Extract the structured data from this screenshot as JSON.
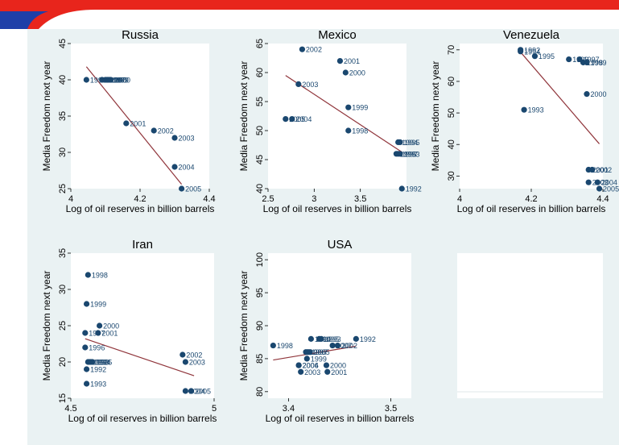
{
  "colors": {
    "marker": "#1a476f",
    "fit_line": "#90353b",
    "plot_bg": "#ffffff",
    "graph_bg": "#eaf2f3",
    "banner_red": "#e8251c",
    "banner_blue": "#1f3fa8",
    "label": "#1a476f"
  },
  "chart_data": [
    {
      "type": "scatter",
      "title": "Russia",
      "xlabel": "Log of oil reserves in billion barrels",
      "ylabel": "Media Freedom next year",
      "xlim": [
        4,
        4.4
      ],
      "ylim": [
        25,
        45
      ],
      "xticks": [
        4,
        4.2,
        4.4
      ],
      "xtick_labels": [
        "4",
        "4.2",
        "4.4"
      ],
      "yticks": [
        25,
        30,
        35,
        40,
        45
      ],
      "ytick_labels": [
        "25",
        "30",
        "35",
        "40",
        "45"
      ],
      "points": [
        {
          "x": 4.045,
          "y": 40,
          "label": "1995"
        },
        {
          "x": 4.09,
          "y": 40,
          "label": "1996"
        },
        {
          "x": 4.1,
          "y": 40,
          "label": "1997"
        },
        {
          "x": 4.105,
          "y": 40,
          "label": "1998"
        },
        {
          "x": 4.11,
          "y": 40,
          "label": "1999"
        },
        {
          "x": 4.115,
          "y": 40,
          "label": "2000"
        },
        {
          "x": 4.16,
          "y": 34,
          "label": "2001"
        },
        {
          "x": 4.24,
          "y": 33,
          "label": "2002"
        },
        {
          "x": 4.3,
          "y": 32,
          "label": "2003"
        },
        {
          "x": 4.3,
          "y": 28,
          "label": "2004"
        },
        {
          "x": 4.32,
          "y": 25,
          "label": "2005"
        }
      ],
      "fit": [
        [
          4.045,
          41.8
        ],
        [
          4.32,
          25.6
        ]
      ]
    },
    {
      "type": "scatter",
      "title": "Mexico",
      "xlabel": "Log of oil reserves in billion barrels",
      "ylabel": "Media Freedom next year",
      "xlim": [
        2.5,
        4
      ],
      "ylim": [
        40,
        65
      ],
      "xticks": [
        2.5,
        3,
        3.5
      ],
      "xtick_labels": [
        "2.5",
        "3",
        "3.5"
      ],
      "yticks": [
        40,
        45,
        50,
        55,
        60,
        65
      ],
      "ytick_labels": [
        "40",
        "45",
        "50",
        "55",
        "60",
        "65"
      ],
      "points": [
        {
          "x": 2.87,
          "y": 64,
          "label": "2002"
        },
        {
          "x": 3.28,
          "y": 62,
          "label": "2001"
        },
        {
          "x": 3.34,
          "y": 60,
          "label": "2000"
        },
        {
          "x": 2.83,
          "y": 58,
          "label": "2003"
        },
        {
          "x": 3.37,
          "y": 54,
          "label": "1999"
        },
        {
          "x": 2.69,
          "y": 52,
          "label": "2005"
        },
        {
          "x": 2.76,
          "y": 52,
          "label": "2004"
        },
        {
          "x": 3.37,
          "y": 50,
          "label": "1998"
        },
        {
          "x": 3.91,
          "y": 48,
          "label": "1994"
        },
        {
          "x": 3.93,
          "y": 48,
          "label": "1995"
        },
        {
          "x": 3.89,
          "y": 46,
          "label": "1996"
        },
        {
          "x": 3.91,
          "y": 46,
          "label": "1997"
        },
        {
          "x": 3.93,
          "y": 46,
          "label": "1993"
        },
        {
          "x": 3.95,
          "y": 40,
          "label": "1992"
        }
      ],
      "fit": [
        [
          2.69,
          59.5
        ],
        [
          3.95,
          46.3
        ]
      ]
    },
    {
      "type": "scatter",
      "title": "Venezuela",
      "xlabel": "Log of oil reserves in billion barrels",
      "ylabel": "Media Freedom next year",
      "xlim": [
        4,
        4.4
      ],
      "ylim": [
        26,
        72
      ],
      "xticks": [
        4,
        4.2,
        4.4
      ],
      "xtick_labels": [
        "4",
        "4.2",
        "4.4"
      ],
      "yticks": [
        30,
        40,
        50,
        60,
        70
      ],
      "ytick_labels": [
        "30",
        "40",
        "50",
        "60",
        "70"
      ],
      "points": [
        {
          "x": 4.17,
          "y": 70,
          "label": "1992"
        },
        {
          "x": 4.17,
          "y": 69.5,
          "label": "1994"
        },
        {
          "x": 4.21,
          "y": 68,
          "label": "1995"
        },
        {
          "x": 4.305,
          "y": 67,
          "label": "1996"
        },
        {
          "x": 4.335,
          "y": 67,
          "label": "1997"
        },
        {
          "x": 4.345,
          "y": 66,
          "label": "1998"
        },
        {
          "x": 4.355,
          "y": 66,
          "label": "1999"
        },
        {
          "x": 4.18,
          "y": 51,
          "label": "1993"
        },
        {
          "x": 4.355,
          "y": 56,
          "label": "2000"
        },
        {
          "x": 4.36,
          "y": 32,
          "label": "2001"
        },
        {
          "x": 4.37,
          "y": 32,
          "label": "2002"
        },
        {
          "x": 4.36,
          "y": 28,
          "label": "2003"
        },
        {
          "x": 4.385,
          "y": 28,
          "label": "2004"
        },
        {
          "x": 4.39,
          "y": 26,
          "label": "2005"
        }
      ],
      "fit": [
        [
          4.17,
          69.3
        ],
        [
          4.39,
          40.2
        ]
      ]
    },
    {
      "type": "scatter",
      "title": "Iran",
      "xlabel": "Log of oil reserves in billion barrels",
      "ylabel": "Media Freedom next year",
      "xlim": [
        4.5,
        5
      ],
      "ylim": [
        15,
        35
      ],
      "xticks": [
        4.5,
        5
      ],
      "xtick_labels": [
        "4.5",
        "5"
      ],
      "yticks": [
        15,
        20,
        25,
        30,
        35
      ],
      "ytick_labels": [
        "15",
        "20",
        "25",
        "30",
        "35"
      ],
      "points": [
        {
          "x": 4.56,
          "y": 32,
          "label": "1998"
        },
        {
          "x": 4.555,
          "y": 28,
          "label": "1999"
        },
        {
          "x": 4.6,
          "y": 25,
          "label": "2000"
        },
        {
          "x": 4.595,
          "y": 24,
          "label": "2001"
        },
        {
          "x": 4.55,
          "y": 24,
          "label": "1997"
        },
        {
          "x": 4.55,
          "y": 22,
          "label": "1996"
        },
        {
          "x": 4.56,
          "y": 20,
          "label": "1992"
        },
        {
          "x": 4.565,
          "y": 20,
          "label": "1993"
        },
        {
          "x": 4.57,
          "y": 20,
          "label": "1994"
        },
        {
          "x": 4.575,
          "y": 20,
          "label": "1995"
        },
        {
          "x": 4.555,
          "y": 19,
          "label": "1992"
        },
        {
          "x": 4.555,
          "y": 17,
          "label": "1993"
        },
        {
          "x": 4.89,
          "y": 21,
          "label": "2002"
        },
        {
          "x": 4.9,
          "y": 20,
          "label": "2003"
        },
        {
          "x": 4.9,
          "y": 16,
          "label": "2004"
        },
        {
          "x": 4.92,
          "y": 16,
          "label": "2005"
        }
      ],
      "fit": [
        [
          4.55,
          23.2
        ],
        [
          4.93,
          18.1
        ]
      ]
    },
    {
      "type": "scatter",
      "title": "USA",
      "xlabel": "Log of oil reserves in billion barrels",
      "ylabel": "Media Freedom next year",
      "xlim": [
        3.38,
        3.52
      ],
      "ylim": [
        79,
        101
      ],
      "xticks": [
        3.4,
        3.5
      ],
      "xtick_labels": [
        "3.4",
        "3.5"
      ],
      "yticks": [
        80,
        85,
        90,
        95,
        100
      ],
      "ytick_labels": [
        "80",
        "85",
        "90",
        "95",
        "100"
      ],
      "points": [
        {
          "x": 3.385,
          "y": 87,
          "label": "1998"
        },
        {
          "x": 3.422,
          "y": 88,
          "label": "1994"
        },
        {
          "x": 3.43,
          "y": 88,
          "label": "1995"
        },
        {
          "x": 3.432,
          "y": 88,
          "label": "1993"
        },
        {
          "x": 3.466,
          "y": 88,
          "label": "1992"
        },
        {
          "x": 3.417,
          "y": 86,
          "label": "1996"
        },
        {
          "x": 3.419,
          "y": 86,
          "label": "1997"
        },
        {
          "x": 3.421,
          "y": 86,
          "label": "2005"
        },
        {
          "x": 3.443,
          "y": 87,
          "label": "2007"
        },
        {
          "x": 3.448,
          "y": 87,
          "label": "2002"
        },
        {
          "x": 3.418,
          "y": 85,
          "label": "1999"
        },
        {
          "x": 3.41,
          "y": 84,
          "label": "2004"
        },
        {
          "x": 3.41,
          "y": 84,
          "label": "2006"
        },
        {
          "x": 3.437,
          "y": 84,
          "label": "2000"
        },
        {
          "x": 3.412,
          "y": 83,
          "label": "2003"
        },
        {
          "x": 3.438,
          "y": 83,
          "label": "2001"
        }
      ],
      "fit": [
        [
          3.385,
          84.8
        ],
        [
          3.466,
          86.9
        ]
      ]
    }
  ]
}
